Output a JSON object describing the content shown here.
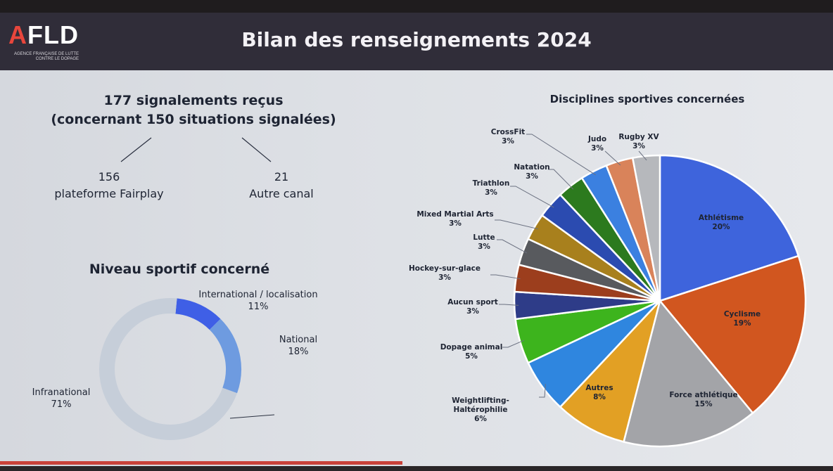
{
  "header": {
    "logo_text": "AFLD",
    "logo_tagline": "AGENCE FRANÇAISE DE LUTTE CONTRE LE DOPAGE",
    "title": "Bilan des renseignements 2024"
  },
  "signalements": {
    "line1": "177 signalements reçus",
    "line2": "(concernant 150 situations signalées)",
    "left_value": "156",
    "left_label": "plateforme Fairplay",
    "right_value": "21",
    "right_label": "Autre canal"
  },
  "niveau": {
    "title": "Niveau sportif concerné",
    "segments": [
      {
        "label": "International / localisation",
        "pct_text": "11%",
        "value": 11,
        "color": "#3f5fe6"
      },
      {
        "label": "National",
        "pct_text": "18%",
        "value": 18,
        "color": "#6e9be0"
      },
      {
        "label": "Infranational",
        "pct_text": "71%",
        "value": 71,
        "color": "#c6ced9"
      }
    ]
  },
  "chart_data": {
    "type": "pie",
    "title": "Disciplines sportives concernées",
    "slices": [
      {
        "label": "Athlétisme",
        "pct_text": "20%",
        "value": 20,
        "color": "#3e64dc"
      },
      {
        "label": "Cyclisme",
        "pct_text": "19%",
        "value": 19,
        "color": "#d1561f"
      },
      {
        "label": "Force athlétique",
        "pct_text": "15%",
        "value": 15,
        "color": "#a3a4a8"
      },
      {
        "label": "Autres",
        "pct_text": "8%",
        "value": 8,
        "color": "#e2a024"
      },
      {
        "label": "Weightlifting-Haltérophilie",
        "pct_text": "6%",
        "value": 6,
        "color": "#2f86df"
      },
      {
        "label": "Dopage animal",
        "pct_text": "5%",
        "value": 5,
        "color": "#3db41d"
      },
      {
        "label": "Aucun sport",
        "pct_text": "3%",
        "value": 3,
        "color": "#2e3c88"
      },
      {
        "label": "Hockey-sur-glace",
        "pct_text": "3%",
        "value": 3,
        "color": "#9c3e1d"
      },
      {
        "label": "Lutte",
        "pct_text": "3%",
        "value": 3,
        "color": "#585a5e"
      },
      {
        "label": "Mixed Martial Arts",
        "pct_text": "3%",
        "value": 3,
        "color": "#a8801d"
      },
      {
        "label": "Triathlon",
        "pct_text": "3%",
        "value": 3,
        "color": "#2b4bb0"
      },
      {
        "label": "Natation",
        "pct_text": "3%",
        "value": 3,
        "color": "#2c7a1e"
      },
      {
        "label": "CrossFit",
        "pct_text": "3%",
        "value": 3,
        "color": "#3b80e0"
      },
      {
        "label": "Judo",
        "pct_text": "3%",
        "value": 3,
        "color": "#d9835a"
      },
      {
        "label": "Rugby XV",
        "pct_text": "3%",
        "value": 3,
        "color": "#b6b8bc"
      }
    ]
  }
}
